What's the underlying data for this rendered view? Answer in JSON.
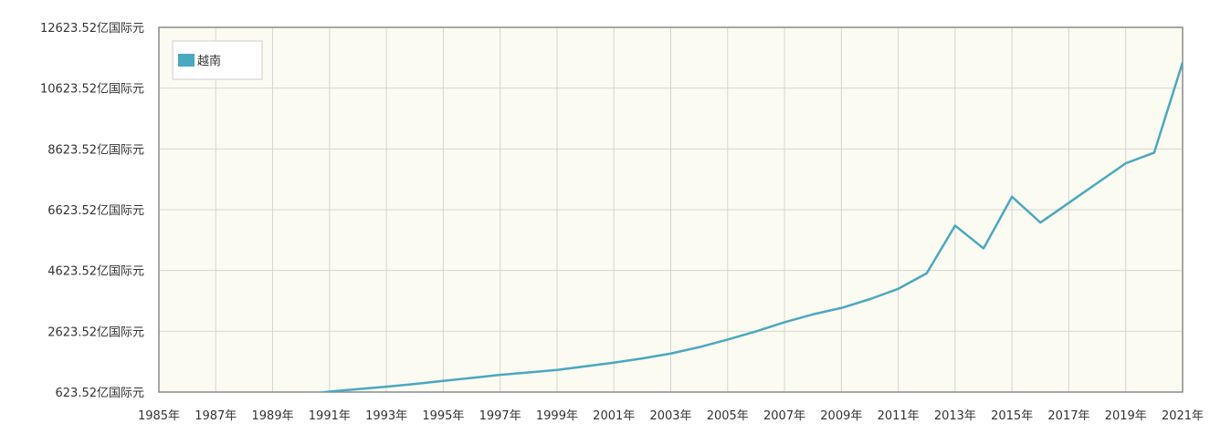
{
  "chart_data": {
    "type": "line",
    "title": "",
    "xlabel": "",
    "ylabel": "",
    "x": [
      1985,
      1986,
      1987,
      1988,
      1989,
      1990,
      1991,
      1992,
      1993,
      1994,
      1995,
      1996,
      1997,
      1998,
      1999,
      2000,
      2001,
      2002,
      2003,
      2004,
      2005,
      2006,
      2007,
      2008,
      2009,
      2010,
      2011,
      2012,
      2013,
      2014,
      2015,
      2016,
      2017,
      2018,
      2019,
      2020,
      2021
    ],
    "x_tick_labels": [
      "1985年",
      "1987年",
      "1989年",
      "1991年",
      "1993年",
      "1995年",
      "1997年",
      "1999年",
      "2001年",
      "2003年",
      "2005年",
      "2007年",
      "2009年",
      "2011年",
      "2013年",
      "2015年",
      "2017年",
      "2019年",
      "2021年"
    ],
    "y_tick_labels": [
      "12623.52亿国际元",
      "10623.52亿国际元",
      "8623.52亿国际元",
      "6623.52亿国际元",
      "4623.52亿国际元",
      "2623.52亿国际元",
      "623.52亿国际元"
    ],
    "y_ticks": [
      12623.52,
      10623.52,
      8623.52,
      6623.52,
      4623.52,
      2623.52,
      623.52
    ],
    "ylim": [
      623.52,
      12623.52
    ],
    "xlim": [
      1985,
      2021
    ],
    "grid": true,
    "legend_position": "top-left",
    "series": [
      {
        "name": "越南",
        "color": "#4aa8c0",
        "values": [
          null,
          null,
          null,
          null,
          null,
          530,
          640,
          720,
          800,
          890,
          990,
          1090,
          1190,
          1270,
          1350,
          1470,
          1590,
          1730,
          1890,
          2100,
          2350,
          2620,
          2920,
          3180,
          3390,
          3680,
          4020,
          4530,
          6100,
          5350,
          7050,
          6200,
          6850,
          7500,
          8150,
          8500,
          11470
        ]
      }
    ]
  }
}
